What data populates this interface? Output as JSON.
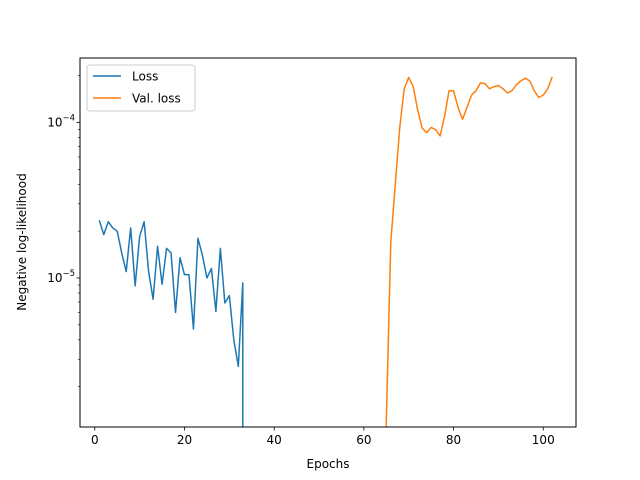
{
  "chart_data": {
    "type": "line",
    "title": "",
    "xlabel": "Epochs",
    "ylabel": "Negative log-likelihood",
    "xlim": [
      -3.3,
      107.3
    ],
    "ylim": [
      1.1e-06,
      0.00026
    ],
    "yscale": "log",
    "xticks": [
      0,
      20,
      40,
      60,
      80,
      100
    ],
    "yticks": [
      {
        "value": 1e-05,
        "base": "10",
        "exp": "−5"
      },
      {
        "value": 0.0001,
        "base": "10",
        "exp": "−4"
      }
    ],
    "grid": false,
    "legend": "top-left",
    "series": [
      {
        "name": "Loss",
        "color": "#1f77b4",
        "x": [
          1,
          2,
          3,
          4,
          5,
          6,
          7,
          8,
          9,
          10,
          11,
          12,
          13,
          14,
          15,
          16,
          17,
          18,
          19,
          20,
          21,
          22,
          23,
          24,
          25,
          26,
          27,
          28,
          29,
          30,
          31,
          32,
          33,
          33
        ],
        "y": [
          2.35e-05,
          1.9e-05,
          2.3e-05,
          2.1e-05,
          2e-05,
          1.45e-05,
          1.1e-05,
          2.1e-05,
          8.9e-06,
          1.85e-05,
          2.3e-05,
          1.1e-05,
          7.3e-06,
          1.6e-05,
          9.1e-06,
          1.55e-05,
          1.45e-05,
          6e-06,
          1.35e-05,
          1.05e-05,
          1.05e-05,
          4.7e-06,
          1.8e-05,
          1.4e-05,
          1e-05,
          1.15e-05,
          6.1e-06,
          1.55e-05,
          6.9e-06,
          7.7e-06,
          4e-06,
          2.7e-06,
          9.3e-06,
          1e-06
        ]
      },
      {
        "name": "Val. loss",
        "color": "#ff7f0e",
        "x": [
          65,
          65,
          66,
          67,
          68,
          69,
          70,
          71,
          72,
          73,
          74,
          75,
          76,
          77,
          78,
          79,
          80,
          81,
          82,
          83,
          84,
          85,
          86,
          87,
          88,
          89,
          90,
          91,
          92,
          93,
          94,
          95,
          96,
          97,
          98,
          99,
          100,
          101,
          102
        ],
        "y": [
          1e-06,
          1.2e-06,
          1.7e-05,
          4e-05,
          9.3e-05,
          0.000165,
          0.000195,
          0.00017,
          0.00012,
          9.2e-05,
          8.6e-05,
          9.3e-05,
          9e-05,
          8.2e-05,
          0.00011,
          0.00016,
          0.00016,
          0.000125,
          0.000105,
          0.000125,
          0.00015,
          0.00016,
          0.00018,
          0.000178,
          0.000165,
          0.00017,
          0.000173,
          0.000165,
          0.000155,
          0.00016,
          0.000175,
          0.000185,
          0.000193,
          0.000185,
          0.00016,
          0.000145,
          0.00015,
          0.000165,
          0.000197
        ]
      }
    ]
  }
}
